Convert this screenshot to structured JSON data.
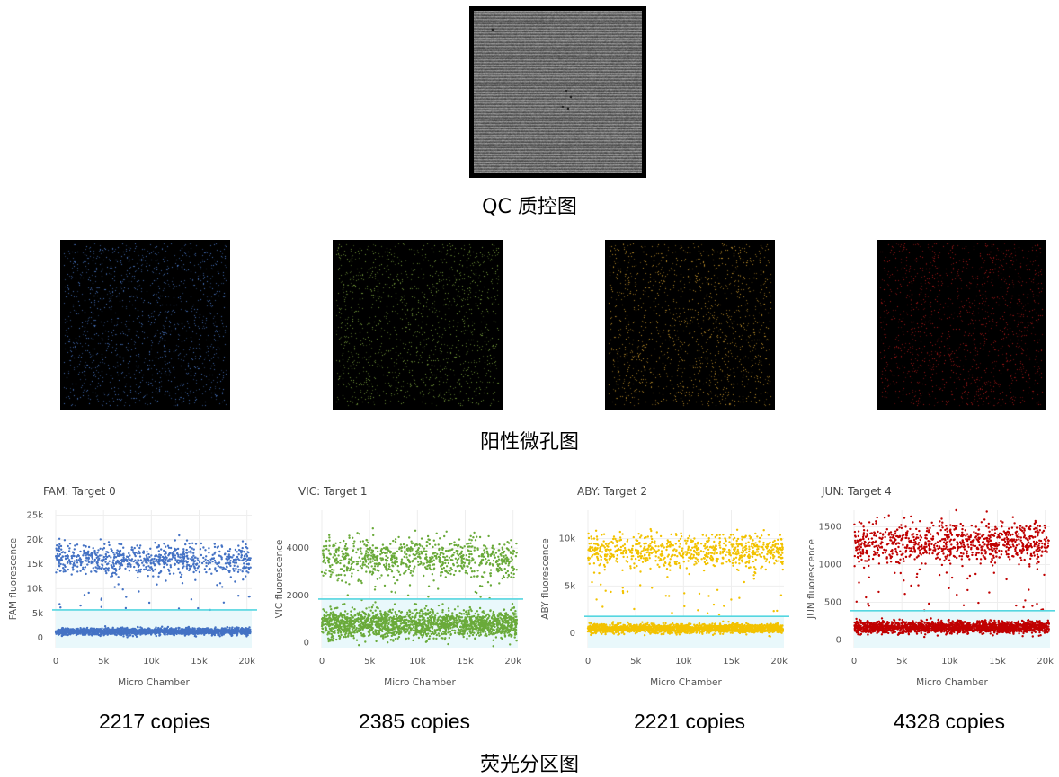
{
  "qc": {
    "title": "QC 质控图"
  },
  "positive": {
    "title": "阳性微孔图",
    "images": [
      {
        "name": "fam-well-image",
        "color": "#4a78c8"
      },
      {
        "name": "vic-well-image",
        "color": "#7aa23c"
      },
      {
        "name": "aby-well-image",
        "color": "#c7952a"
      },
      {
        "name": "jun-well-image",
        "color": "#b01818"
      }
    ]
  },
  "partition": {
    "title": "荧光分区图"
  },
  "chart_data": [
    {
      "type": "scatter",
      "title": "FAM: Target 0",
      "xlabel": "Micro Chamber",
      "ylabel": "FAM fluorescence",
      "xlim": [
        0,
        20500
      ],
      "ylim": [
        -2000,
        26000
      ],
      "xticks": [
        {
          "v": 0,
          "label": "0"
        },
        {
          "v": 5000,
          "label": "5k"
        },
        {
          "v": 10000,
          "label": "10k"
        },
        {
          "v": 15000,
          "label": "15k"
        },
        {
          "v": 20000,
          "label": "20k"
        }
      ],
      "yticks": [
        {
          "v": 0,
          "label": "0"
        },
        {
          "v": 5000,
          "label": "5k"
        },
        {
          "v": 10000,
          "label": "10k"
        },
        {
          "v": 15000,
          "label": "15k"
        },
        {
          "v": 20000,
          "label": "20k"
        },
        {
          "v": 25000,
          "label": "25k"
        }
      ],
      "threshold": 5700,
      "color": "#4472c4",
      "clusters": {
        "negative": {
          "center": 1300,
          "spread": 1000,
          "count": 17800
        },
        "positive": {
          "center": 16000,
          "spread": 4500,
          "count": 2217
        }
      },
      "copies_label": "2217 copies"
    },
    {
      "type": "scatter",
      "title": "VIC: Target 1",
      "xlabel": "Micro Chamber",
      "ylabel": "VIC fluorescence",
      "xlim": [
        0,
        20500
      ],
      "ylim": [
        -200,
        5600
      ],
      "xticks": [
        {
          "v": 0,
          "label": "0"
        },
        {
          "v": 5000,
          "label": "5k"
        },
        {
          "v": 10000,
          "label": "10k"
        },
        {
          "v": 15000,
          "label": "15k"
        },
        {
          "v": 20000,
          "label": "20k"
        }
      ],
      "yticks": [
        {
          "v": 0,
          "label": "0"
        },
        {
          "v": 2000,
          "label": "2000"
        },
        {
          "v": 4000,
          "label": "4000"
        }
      ],
      "threshold": 1850,
      "color": "#6aaa3a",
      "clusters": {
        "negative": {
          "center": 800,
          "spread": 900,
          "count": 17600
        },
        "positive": {
          "center": 3600,
          "spread": 1300,
          "count": 2385
        }
      },
      "copies_label": "2385 copies"
    },
    {
      "type": "scatter",
      "title": "ABY: Target 2",
      "xlabel": "Micro Chamber",
      "ylabel": "ABY fluorescence",
      "xlim": [
        0,
        20500
      ],
      "ylim": [
        -1500,
        13000
      ],
      "xticks": [
        {
          "v": 0,
          "label": "0"
        },
        {
          "v": 5000,
          "label": "5k"
        },
        {
          "v": 10000,
          "label": "10k"
        },
        {
          "v": 15000,
          "label": "15k"
        },
        {
          "v": 20000,
          "label": "20k"
        }
      ],
      "yticks": [
        {
          "v": 0,
          "label": "0"
        },
        {
          "v": 5000,
          "label": "5k"
        },
        {
          "v": 10000,
          "label": "10k"
        }
      ],
      "threshold": 1800,
      "color": "#f2c200",
      "clusters": {
        "negative": {
          "center": 500,
          "spread": 700,
          "count": 17800
        },
        "positive": {
          "center": 8700,
          "spread": 2600,
          "count": 2221
        }
      },
      "copies_label": "2221 copies"
    },
    {
      "type": "scatter",
      "title": "JUN: Target 4",
      "xlabel": "Micro Chamber",
      "ylabel": "JUN fluorescence",
      "xlim": [
        0,
        20500
      ],
      "ylim": [
        -100,
        1720
      ],
      "xticks": [
        {
          "v": 0,
          "label": "0"
        },
        {
          "v": 5000,
          "label": "5k"
        },
        {
          "v": 10000,
          "label": "10k"
        },
        {
          "v": 15000,
          "label": "15k"
        },
        {
          "v": 20000,
          "label": "20k"
        }
      ],
      "yticks": [
        {
          "v": 0,
          "label": "0"
        },
        {
          "v": 500,
          "label": "500"
        },
        {
          "v": 1000,
          "label": "1000"
        },
        {
          "v": 1500,
          "label": "1500"
        }
      ],
      "threshold": 390,
      "color": "#c00000",
      "clusters": {
        "negative": {
          "center": 170,
          "spread": 120,
          "count": 15700
        },
        "positive": {
          "center": 1280,
          "spread": 400,
          "count": 4328
        }
      },
      "copies_label": "4328 copies"
    }
  ]
}
